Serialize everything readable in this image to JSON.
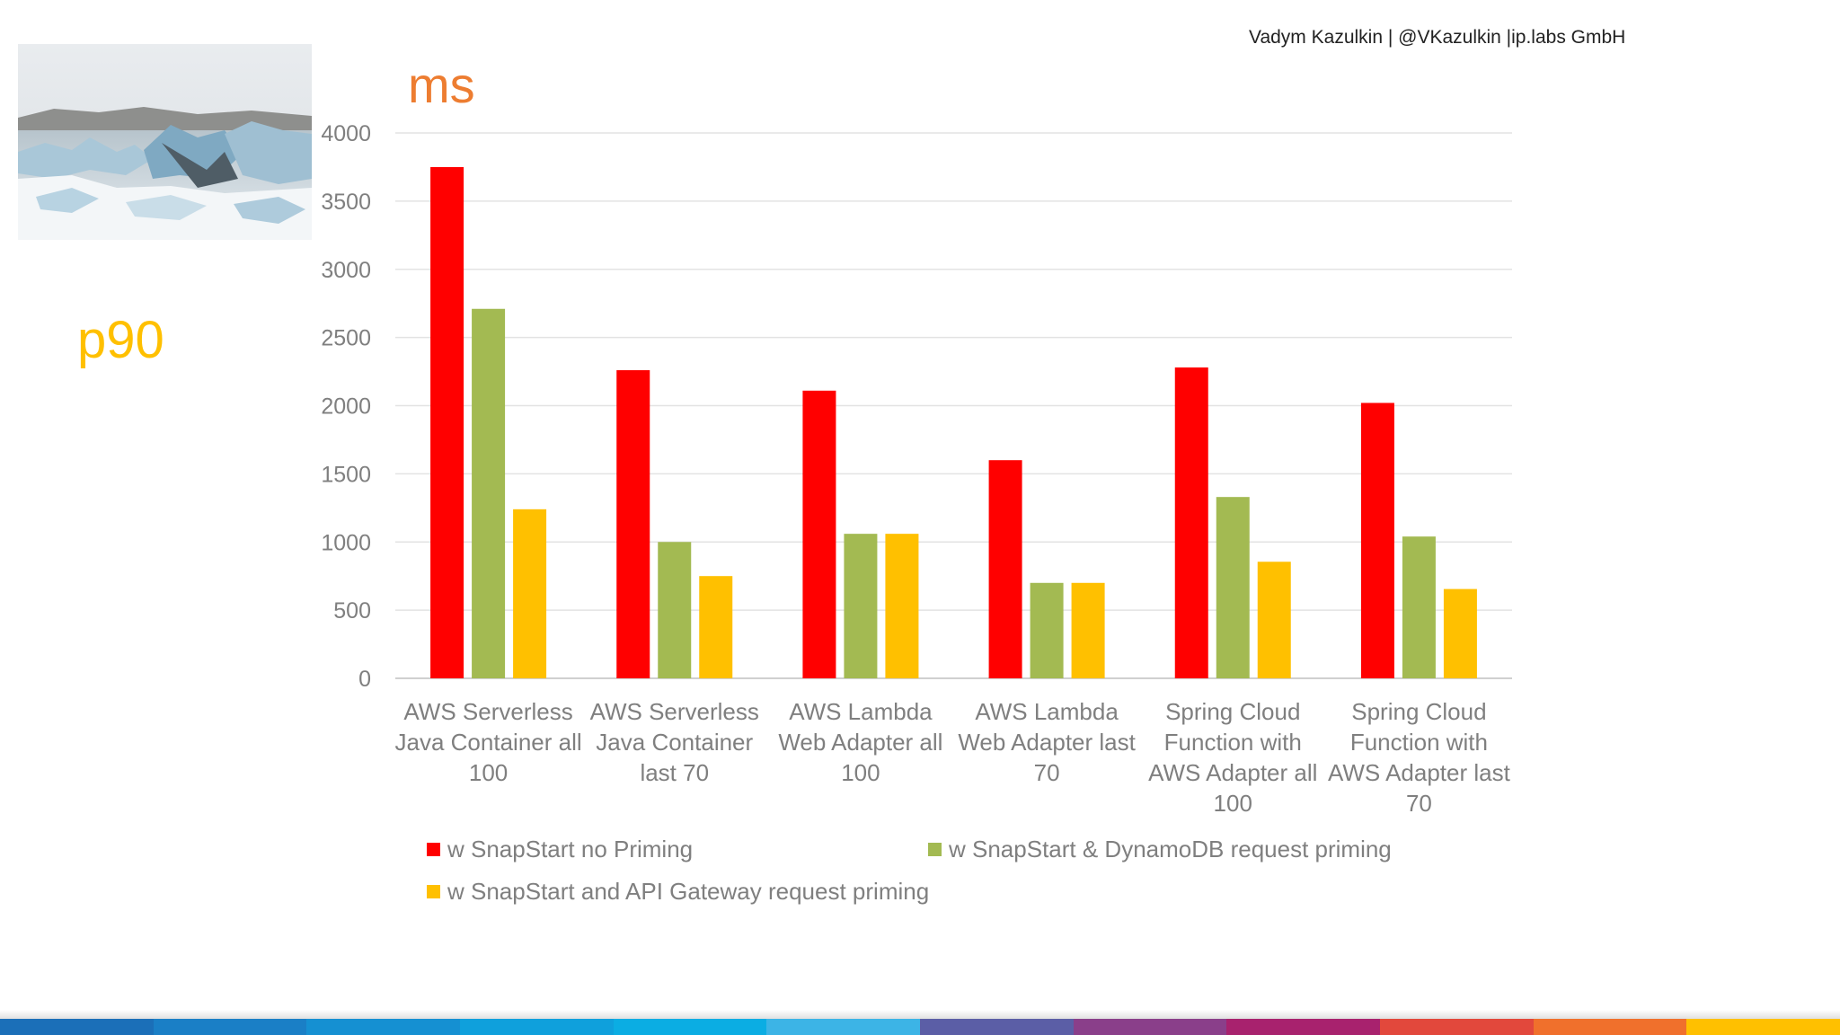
{
  "header": {
    "author": "Vadym Kazulkin | @VKazulkin |ip.labs GmbH"
  },
  "slide": {
    "metric_label": "p90",
    "unit_label": "ms"
  },
  "image": {
    "description_icon": "glacier-photo"
  },
  "chart_data": {
    "type": "bar",
    "title": "",
    "ylabel": "ms",
    "xlabel": "",
    "ylim": [
      0,
      4000
    ],
    "yticks": [
      0,
      500,
      1000,
      1500,
      2000,
      2500,
      3000,
      3500,
      4000
    ],
    "grid": true,
    "legend_position": "bottom",
    "categories": [
      [
        "AWS Serverless",
        "Java Container all",
        "100"
      ],
      [
        "AWS Serverless",
        "Java Container",
        "last 70"
      ],
      [
        "AWS Lambda",
        "Web Adapter all",
        "100"
      ],
      [
        "AWS Lambda",
        "Web Adapter last",
        "70"
      ],
      [
        "Spring Cloud",
        "Function with",
        "AWS Adapter all",
        "100"
      ],
      [
        "Spring Cloud",
        "Function with",
        "AWS Adapter last",
        "70"
      ]
    ],
    "series": [
      {
        "name": "w SnapStart no Priming",
        "color": "#FF0000",
        "values": [
          3750,
          2260,
          2110,
          1600,
          2280,
          2020
        ]
      },
      {
        "name": "w SnapStart & DynamoDB request priming",
        "color": "#A3BA52",
        "values": [
          2710,
          1000,
          1060,
          700,
          1330,
          1040
        ]
      },
      {
        "name": "w SnapStart and API Gateway request priming",
        "color": "#FFC000",
        "values": [
          1240,
          750,
          1060,
          700,
          855,
          655
        ]
      }
    ]
  },
  "footer": {
    "colors": [
      "#1B6FB8",
      "#1A7FC6",
      "#1590D2",
      "#0FA0DC",
      "#0BADE3",
      "#3CB4E6",
      "#5B5EA6",
      "#8A3F8A",
      "#A8226E",
      "#E2483C",
      "#F0702C",
      "#FFC000"
    ]
  }
}
